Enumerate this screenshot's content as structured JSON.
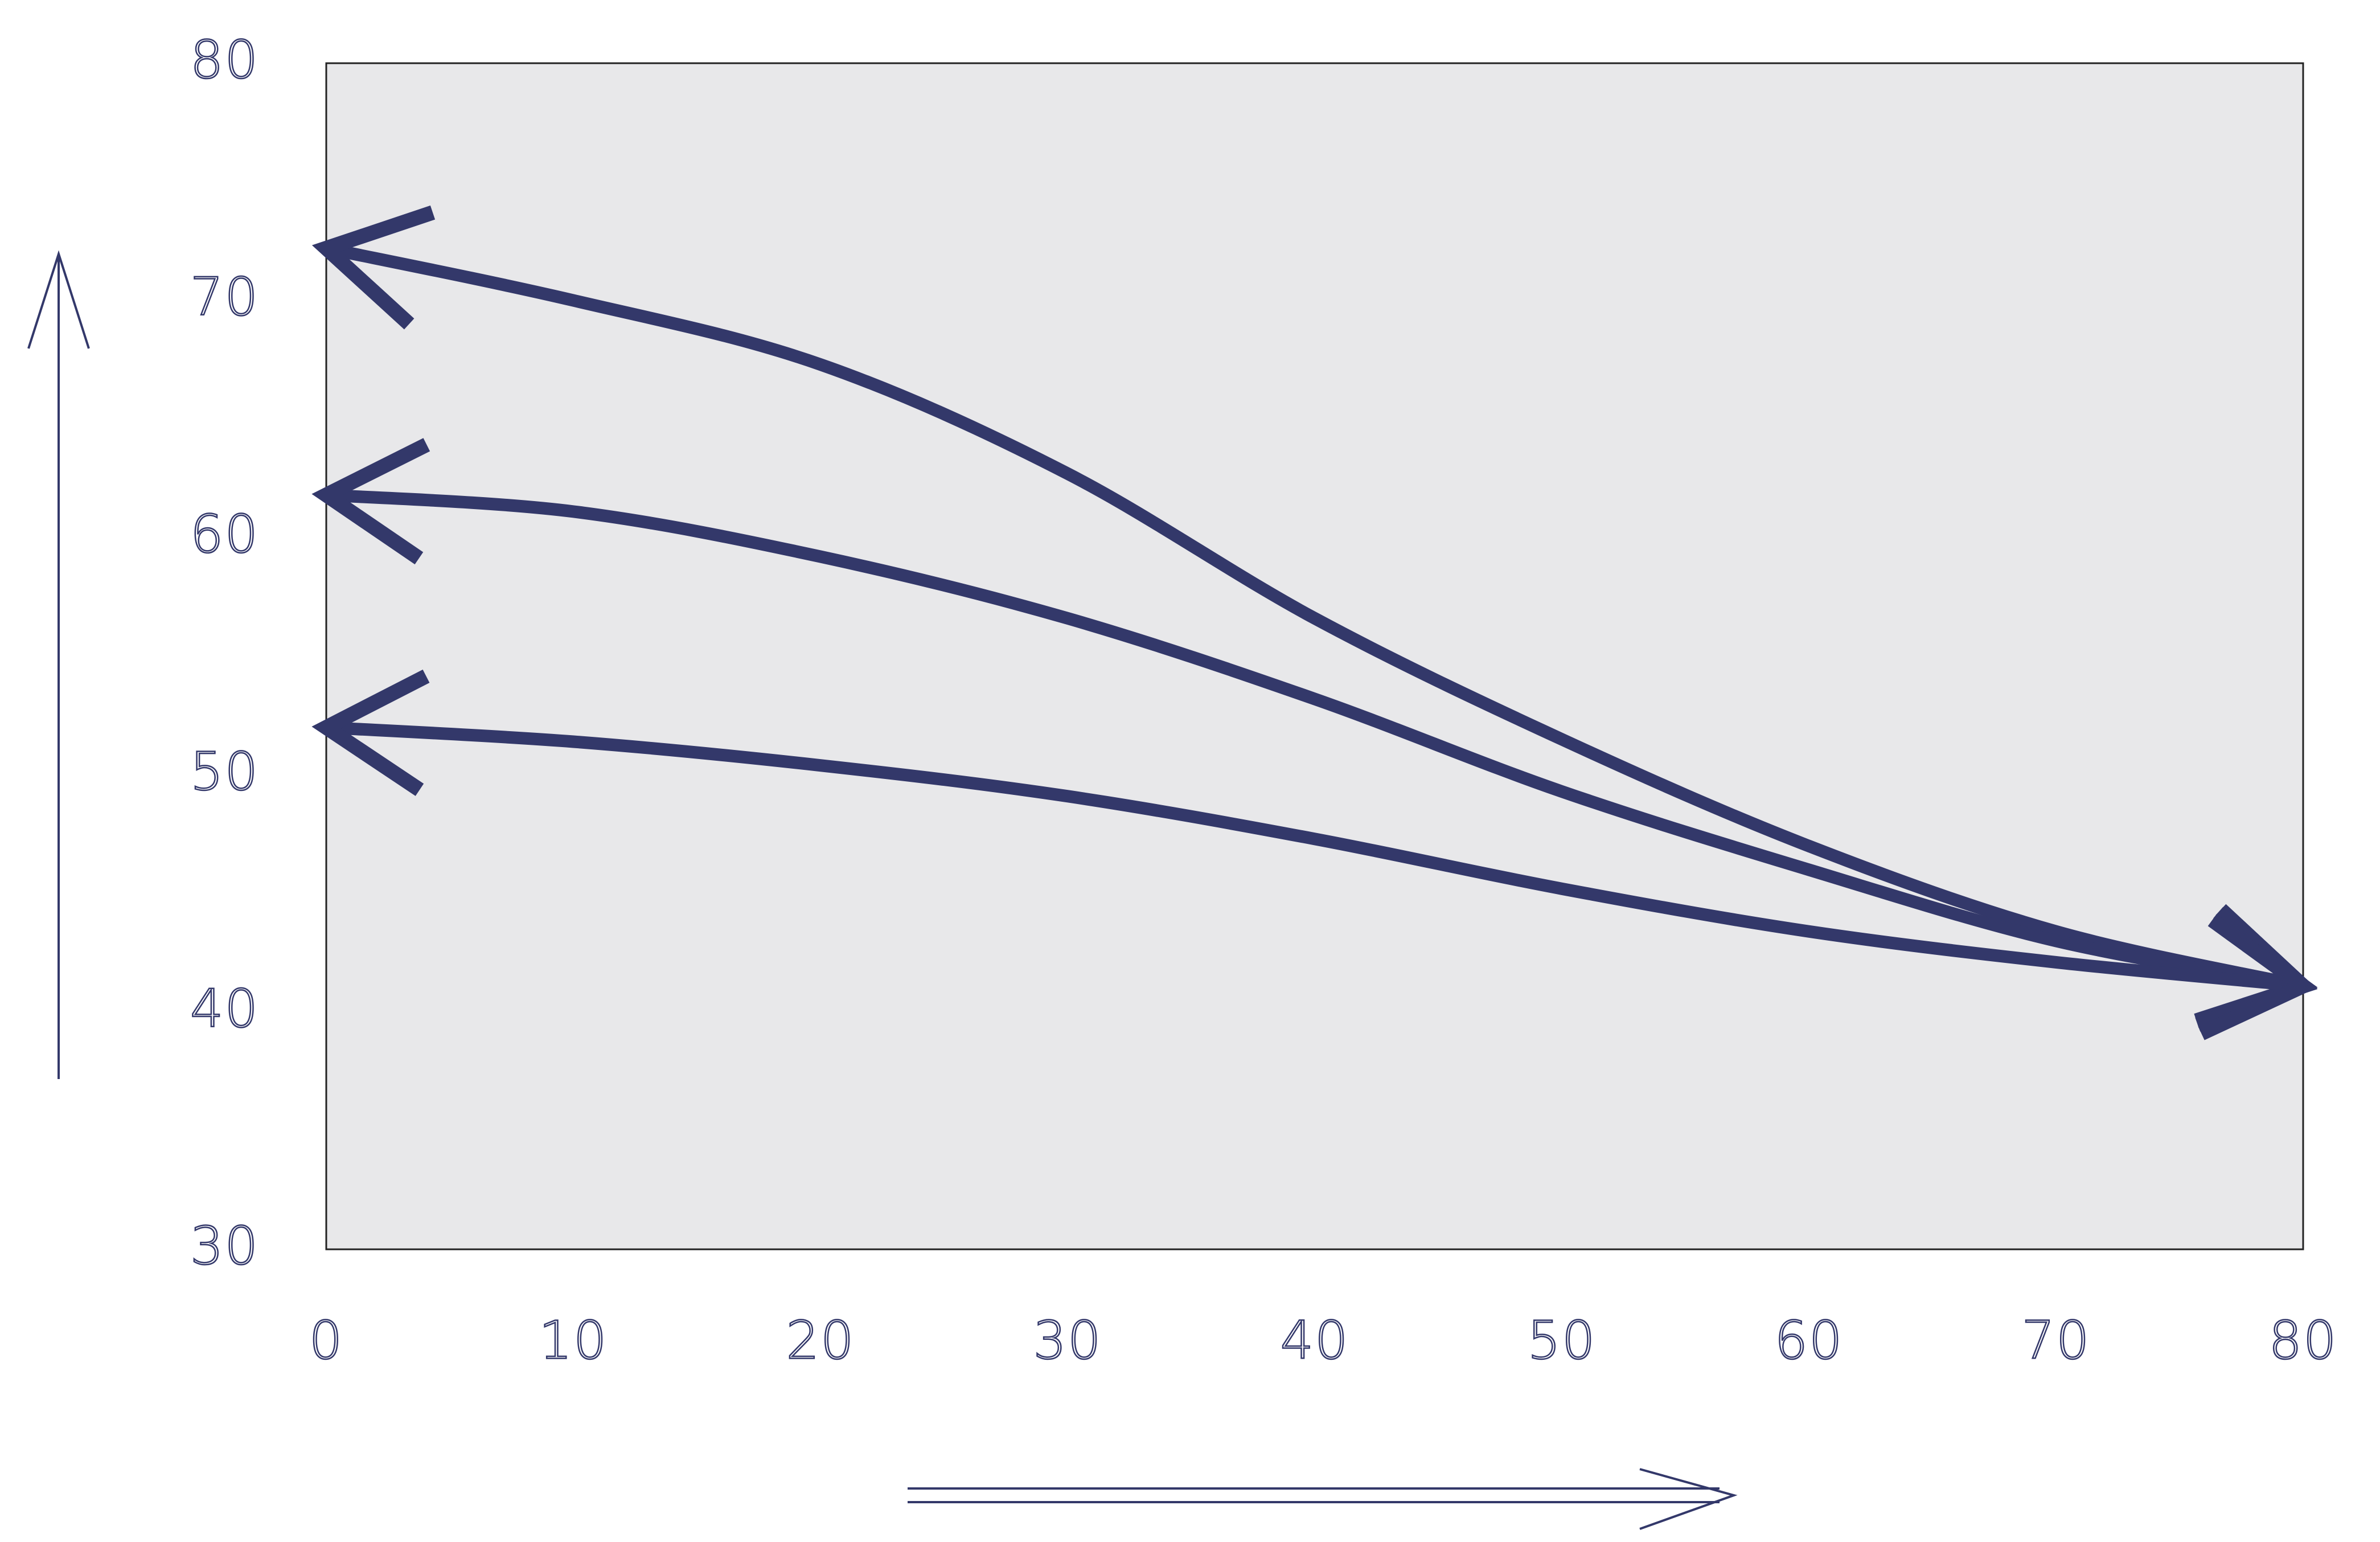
{
  "chart_data": {
    "type": "line",
    "x": [
      0,
      10,
      20,
      30,
      40,
      50,
      60,
      70,
      80
    ],
    "series": [
      {
        "color": "#33386a",
        "values": [
          72.2,
          70.0,
          67.3,
          62.7,
          56.6,
          51.5,
          47.0,
          43.4,
          41.1
        ]
      },
      {
        "color": "#33386a",
        "values": [
          61.8,
          61.1,
          59.2,
          56.6,
          53.2,
          49.3,
          46.0,
          43.0,
          41.1
        ]
      },
      {
        "color": "#33386a",
        "values": [
          52.0,
          51.4,
          50.4,
          49.1,
          47.3,
          45.2,
          43.4,
          42.1,
          41.1
        ]
      }
    ],
    "xlim": [
      0,
      80
    ],
    "ylim": [
      30,
      80
    ],
    "xticks": [
      0,
      10,
      20,
      30,
      40,
      50,
      60,
      70,
      80
    ],
    "yticks": [
      30,
      40,
      50,
      60,
      70,
      80
    ],
    "plot_background": "#e8e8ea"
  }
}
